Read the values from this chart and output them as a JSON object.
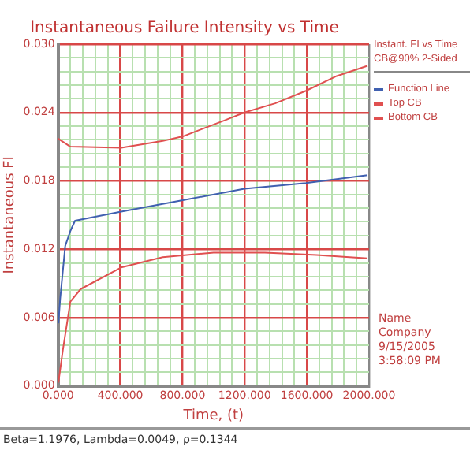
{
  "chart_data": {
    "type": "line",
    "title": "Instantaneous Failure Intensity vs Time",
    "xlabel": "Time, (t)",
    "ylabel": "Instantaneous FI",
    "legend_title": "Instant. FI vs Time\nCB@90% 2-Sided",
    "legend": "right",
    "grid": true,
    "marker": "none",
    "line_style": "solid",
    "xlim": [
      0,
      2000
    ],
    "ylim": [
      0,
      0.03
    ],
    "xticks": [
      {
        "value": 0,
        "label": "0.000"
      },
      {
        "value": 80,
        "label": null
      },
      {
        "value": 160,
        "label": null
      },
      {
        "value": 240,
        "label": null
      },
      {
        "value": 320,
        "label": null
      },
      {
        "value": 400,
        "label": "400.000"
      },
      {
        "value": 480,
        "label": null
      },
      {
        "value": 560,
        "label": null
      },
      {
        "value": 640,
        "label": null
      },
      {
        "value": 720,
        "label": null
      },
      {
        "value": 800,
        "label": "800.000"
      },
      {
        "value": 880,
        "label": null
      },
      {
        "value": 960,
        "label": null
      },
      {
        "value": 1040,
        "label": null
      },
      {
        "value": 1120,
        "label": null
      },
      {
        "value": 1200,
        "label": "1200.000"
      },
      {
        "value": 1280,
        "label": null
      },
      {
        "value": 1360,
        "label": null
      },
      {
        "value": 1440,
        "label": null
      },
      {
        "value": 1520,
        "label": null
      },
      {
        "value": 1600,
        "label": "1600.000"
      },
      {
        "value": 1680,
        "label": null
      },
      {
        "value": 1760,
        "label": null
      },
      {
        "value": 1840,
        "label": null
      },
      {
        "value": 1920,
        "label": null
      },
      {
        "value": 2000,
        "label": "2000.000"
      }
    ],
    "yticks": [
      {
        "value": 0,
        "label": "0.000"
      },
      {
        "value": 0.0012,
        "label": null
      },
      {
        "value": 0.0024,
        "label": null
      },
      {
        "value": 0.0036,
        "label": null
      },
      {
        "value": 0.0048,
        "label": null
      },
      {
        "value": 0.006,
        "label": "0.006"
      },
      {
        "value": 0.0072,
        "label": null
      },
      {
        "value": 0.0084,
        "label": null
      },
      {
        "value": 0.0096,
        "label": null
      },
      {
        "value": 0.0108,
        "label": null
      },
      {
        "value": 0.012,
        "label": "0.012"
      },
      {
        "value": 0.0132,
        "label": null
      },
      {
        "value": 0.0144,
        "label": null
      },
      {
        "value": 0.0156,
        "label": null
      },
      {
        "value": 0.0168,
        "label": null
      },
      {
        "value": 0.018,
        "label": "0.018"
      },
      {
        "value": 0.0192,
        "label": null
      },
      {
        "value": 0.0204,
        "label": null
      },
      {
        "value": 0.0216,
        "label": null
      },
      {
        "value": 0.0228,
        "label": null
      },
      {
        "value": 0.024,
        "label": "0.024"
      },
      {
        "value": 0.0252,
        "label": null
      },
      {
        "value": 0.0264,
        "label": null
      },
      {
        "value": 0.0276,
        "label": null
      },
      {
        "value": 0.0288,
        "label": null
      },
      {
        "value": 0.03,
        "label": "0.030"
      }
    ],
    "series": [
      {
        "name": "Function Line",
        "color": "#4060b0",
        "x": [
          2,
          13,
          46,
          79,
          109,
          406,
          802,
          1198,
          1594,
          1990
        ],
        "values": [
          0.0055,
          0.0076,
          0.0123,
          0.0136,
          0.0145,
          0.0153,
          0.0163,
          0.0173,
          0.0178,
          0.0185
        ]
      },
      {
        "name": "Top CB",
        "color": "#e05050",
        "x": [
          0,
          79,
          406,
          673,
          802,
          1069,
          1198,
          1396,
          1594,
          1792,
          1990
        ],
        "values": [
          0.0217,
          0.021,
          0.0209,
          0.0215,
          0.0219,
          0.0233,
          0.024,
          0.0248,
          0.0259,
          0.0272,
          0.0281
        ]
      },
      {
        "name": "Bottom CB",
        "color": "#e05050",
        "x": [
          2,
          30,
          79,
          145,
          406,
          673,
          1000,
          1330,
          1663,
          1990
        ],
        "values": [
          0.0003,
          0.0031,
          0.0074,
          0.0085,
          0.0104,
          0.0113,
          0.0117,
          0.0117,
          0.0115,
          0.0112
        ]
      }
    ],
    "annotations": [
      "Name",
      "Company",
      "9/15/2005",
      "3:58:09 PM",
      "Beta=1.1976, Lambda=0.0049, ρ=0.1344"
    ]
  }
}
